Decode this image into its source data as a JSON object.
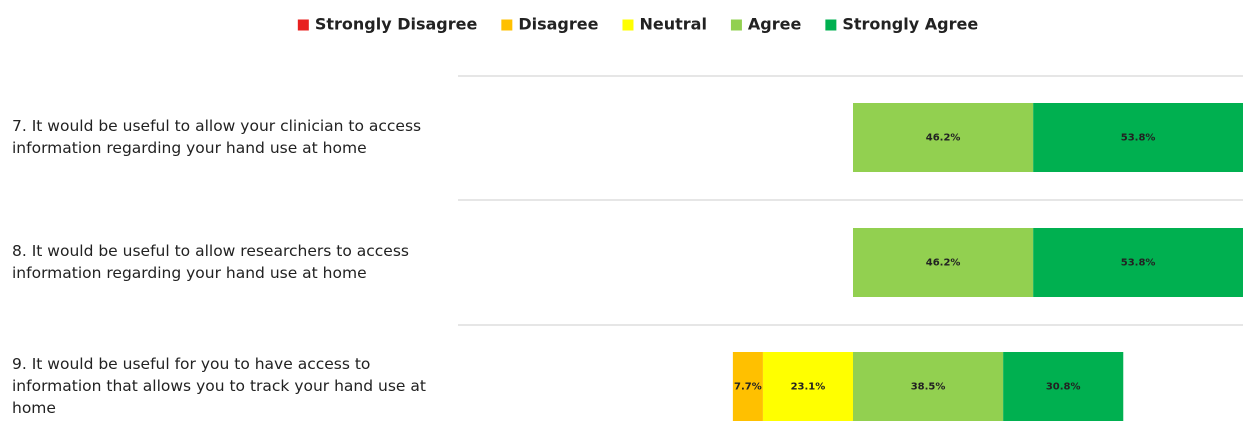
{
  "chart_data": {
    "type": "bar",
    "orientation": "horizontal",
    "stacked": "diverging",
    "legend_position": "top",
    "grid": false,
    "legend": [
      {
        "name": "Strongly Disagree",
        "color": "#e8201f"
      },
      {
        "name": "Disagree",
        "color": "#ffc000"
      },
      {
        "name": "Neutral",
        "color": "#ffff00"
      },
      {
        "name": "Agree",
        "color": "#92d050"
      },
      {
        "name": "Strongly Agree",
        "color": "#00b050"
      }
    ],
    "categories": [
      {
        "lines": [
          "7. It would be useful to allow your clinician to access",
          "information regarding your hand use at home"
        ]
      },
      {
        "lines": [
          "8. It would be useful to allow researchers to access",
          "information regarding your hand use at home"
        ]
      },
      {
        "lines": [
          "9. It would be useful for you to have access to",
          "information that allows you to track your hand use at",
          "home"
        ]
      }
    ],
    "series": [
      {
        "name": "Strongly Disagree",
        "values": [
          0,
          0,
          0
        ],
        "labels": [
          "",
          "",
          ""
        ]
      },
      {
        "name": "Disagree",
        "values": [
          0,
          0,
          7.7
        ],
        "labels": [
          "",
          "",
          "7.7%"
        ]
      },
      {
        "name": "Neutral",
        "values": [
          0,
          0,
          23.1
        ],
        "labels": [
          "",
          "",
          "23.1%"
        ]
      },
      {
        "name": "Agree",
        "values": [
          46.2,
          46.2,
          38.5
        ],
        "labels": [
          "46.2%",
          "46.2%",
          "38.5%"
        ]
      },
      {
        "name": "Strongly Agree",
        "values": [
          53.8,
          53.8,
          30.8
        ],
        "labels": [
          "53.8%",
          "53.8%",
          "30.8%"
        ]
      }
    ]
  }
}
